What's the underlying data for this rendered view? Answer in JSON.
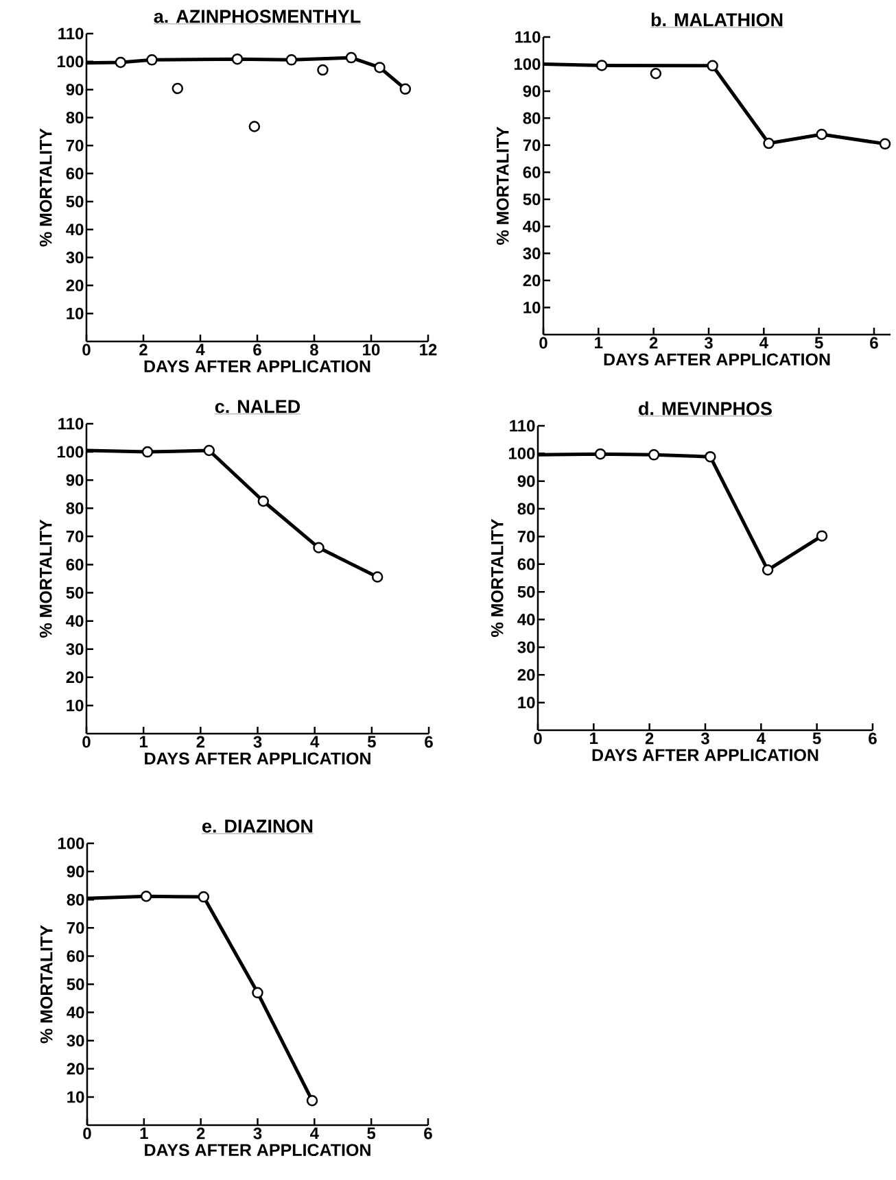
{
  "chart_data": [
    {
      "type": "line",
      "title": "a. AZINPHOSMENTHYL",
      "xlabel": "DAYS AFTER APPLICATION",
      "ylabel": "% MORTALITY",
      "xlim": [
        0,
        12
      ],
      "ylim": [
        0,
        110
      ],
      "xticks": [
        0,
        2,
        4,
        6,
        8,
        10,
        12
      ],
      "yticks": [
        10,
        20,
        30,
        40,
        50,
        60,
        70,
        80,
        90,
        100,
        110
      ],
      "series": [
        {
          "marker": "none",
          "color": "#000000",
          "x": [
            0,
            1.2,
            2.3,
            5.3,
            7.2,
            9.3,
            10.3,
            11.2
          ],
          "values": [
            99.5,
            99.7,
            100.6,
            100.9,
            100.6,
            101.4,
            97.9,
            90.2
          ]
        },
        {
          "type": "scatter",
          "marker": "circle",
          "color": "#000000",
          "x": [
            1.2,
            2.3,
            3.2,
            5.3,
            5.9,
            7.2,
            8.3,
            9.3,
            10.3,
            11.2
          ],
          "values": [
            99.7,
            100.6,
            90.4,
            100.9,
            76.8,
            100.6,
            97,
            101.4,
            97.9,
            90.2
          ]
        }
      ]
    },
    {
      "type": "line",
      "title": "b. MALATHION",
      "xlabel": "DAYS AFTER APPLICATION",
      "ylabel": "% MORTALITY",
      "xlim": [
        0,
        6.3
      ],
      "ylim": [
        0,
        110
      ],
      "xticks": [
        0,
        1,
        2,
        3,
        4,
        5,
        6
      ],
      "yticks": [
        10,
        20,
        30,
        40,
        50,
        60,
        70,
        80,
        90,
        100,
        110
      ],
      "series": [
        {
          "marker": "none",
          "color": "#000000",
          "x": [
            0,
            1.06,
            3.07,
            4.09,
            5.05,
            6.2
          ],
          "values": [
            100,
            99.5,
            99.4,
            70.7,
            74,
            70.5
          ]
        },
        {
          "type": "scatter",
          "marker": "circle",
          "color": "#000000",
          "x": [
            1.06,
            2.04,
            3.07,
            4.09,
            5.05,
            6.2
          ],
          "values": [
            99.5,
            96.5,
            99.4,
            70.7,
            74,
            70.5
          ]
        }
      ]
    },
    {
      "type": "line",
      "title": "c.  NALED",
      "xlabel": "DAYS AFTER APPLICATION",
      "ylabel": "% MORTALITY",
      "xlim": [
        0,
        6
      ],
      "ylim": [
        0,
        110
      ],
      "xticks": [
        0,
        1,
        2,
        3,
        4,
        5,
        6
      ],
      "yticks": [
        10,
        20,
        30,
        40,
        50,
        60,
        70,
        80,
        90,
        100,
        110
      ],
      "series": [
        {
          "marker": "none",
          "color": "#000000",
          "x": [
            0,
            1.07,
            2.15,
            3.1,
            4.07,
            5.1
          ],
          "values": [
            100.5,
            100,
            100.5,
            82.5,
            66,
            55.6
          ]
        },
        {
          "type": "scatter",
          "marker": "circle",
          "color": "#000000",
          "x": [
            1.07,
            2.15,
            3.1,
            4.07,
            5.1
          ],
          "values": [
            100,
            100.5,
            82.5,
            66,
            55.6
          ]
        }
      ]
    },
    {
      "type": "line",
      "title": "d. MEVINPHOS",
      "xlabel": "DAYS AFTER APPLICATION",
      "ylabel": "% MORTALITY",
      "xlim": [
        0,
        6
      ],
      "ylim": [
        0,
        110
      ],
      "xticks": [
        0,
        1,
        2,
        3,
        4,
        5,
        6
      ],
      "yticks": [
        10,
        20,
        30,
        40,
        50,
        60,
        70,
        80,
        90,
        100,
        110
      ],
      "series": [
        {
          "marker": "none",
          "color": "#000000",
          "x": [
            0,
            1.12,
            2.08,
            3.09,
            4.12,
            5.09
          ],
          "values": [
            99.5,
            99.8,
            99.5,
            98.8,
            57.9,
            70.2
          ]
        },
        {
          "type": "scatter",
          "marker": "circle",
          "color": "#000000",
          "x": [
            1.12,
            2.08,
            3.09,
            4.12,
            5.09
          ],
          "values": [
            99.8,
            99.5,
            98.8,
            57.9,
            70.2
          ]
        }
      ]
    },
    {
      "type": "line",
      "title": "e.  DIAZINON",
      "xlabel": "DAYS AFTER APPLICATION",
      "ylabel": "% MORTALITY",
      "xlim": [
        0,
        6
      ],
      "ylim": [
        0,
        100
      ],
      "xticks": [
        0,
        1,
        2,
        3,
        4,
        5,
        6
      ],
      "yticks": [
        10,
        20,
        30,
        40,
        50,
        60,
        70,
        80,
        90,
        100
      ],
      "series": [
        {
          "marker": "none",
          "color": "#000000",
          "x": [
            0,
            1.04,
            2.05,
            3.0,
            3.96
          ],
          "values": [
            80.5,
            81.2,
            81,
            47,
            8.7
          ]
        },
        {
          "type": "scatter",
          "marker": "circle",
          "color": "#000000",
          "x": [
            1.04,
            2.05,
            3.0,
            3.96
          ],
          "values": [
            81.2,
            81,
            47,
            8.7
          ]
        }
      ]
    }
  ]
}
